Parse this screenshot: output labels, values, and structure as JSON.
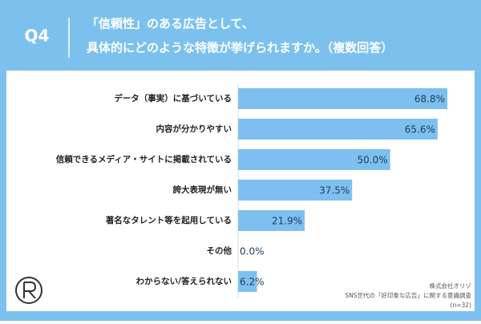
{
  "chart_data": {
    "type": "bar",
    "orientation": "horizontal",
    "label": "Q4",
    "title": [
      "「信頼性」のある広告として、",
      "具体的にどのような特徴が挙げられますか。（複数回答）"
    ],
    "categories": [
      "データ（事実）に基づいている",
      "内容が分かりやすい",
      "信頼できるメディア・サイトに掲載されている",
      "誇大表現が無い",
      "著名なタレント等を起用している",
      "その他",
      "わからない/答えられない"
    ],
    "values": [
      68.8,
      65.6,
      50.0,
      37.5,
      21.9,
      0.0,
      6.2
    ],
    "value_labels": [
      "68.8%",
      "65.6%",
      "50.0%",
      "37.5%",
      "21.9%",
      "0.0%",
      "6.2%"
    ],
    "color": "#7dc0f0",
    "source": [
      "株式会社オリゾ",
      "SNS世代の「好印象な広告」に関する意識調査",
      "(n=32)"
    ]
  }
}
